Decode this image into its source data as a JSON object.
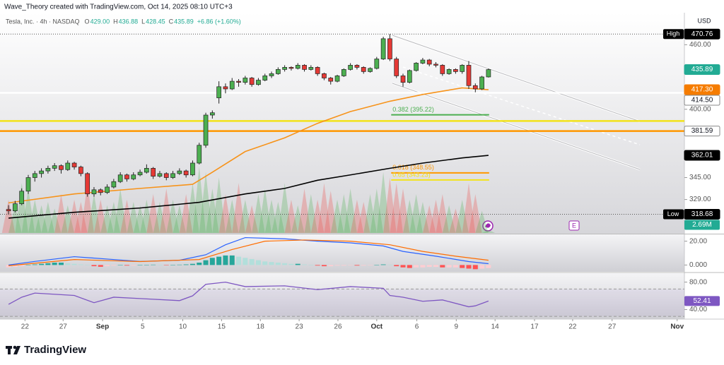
{
  "header": {
    "caption": "Wave_Theory created with TradingView.com, Oct 14, 2025 08:10 UTC+3"
  },
  "brand": "TradingView",
  "chart_data": {
    "type": "candlestick",
    "symbol": "Tesla, Inc. · 4h · NASDAQ",
    "ohlc_names": [
      "O",
      "H",
      "L",
      "C"
    ],
    "ohlc": [
      {
        "value": 429,
        "label": "429.00"
      },
      {
        "value": 436.88,
        "label": "436.88"
      },
      {
        "value": 428.45,
        "label": "428.45"
      },
      {
        "value": 435.89,
        "label": "435.89"
      }
    ],
    "change": "+6.86 (+1.60%)",
    "currency": "USD",
    "log_scale": true,
    "grid": false,
    "up_color": "#4caf50",
    "down_color": "#e53935",
    "candles": [
      [
        322,
        325,
        318.68,
        321
      ],
      [
        321,
        328,
        320,
        326
      ],
      [
        326,
        337,
        325,
        335
      ],
      [
        335,
        347,
        333,
        345
      ],
      [
        345,
        350,
        342,
        348
      ],
      [
        348,
        352,
        345,
        350
      ],
      [
        350,
        354,
        348,
        352
      ],
      [
        352,
        356,
        350,
        354
      ],
      [
        354,
        355,
        348,
        351
      ],
      [
        351,
        358,
        350,
        356
      ],
      [
        356,
        357,
        351,
        353
      ],
      [
        353,
        354,
        346,
        348
      ],
      [
        348,
        349,
        331,
        333
      ],
      [
        333,
        338,
        331,
        336
      ],
      [
        336,
        337,
        332,
        334
      ],
      [
        334,
        340,
        333,
        338
      ],
      [
        338,
        344,
        337,
        342
      ],
      [
        342,
        349,
        341,
        347
      ],
      [
        347,
        348,
        342,
        344
      ],
      [
        344,
        349,
        343,
        347
      ],
      [
        347,
        351,
        346,
        349
      ],
      [
        349,
        355,
        348,
        352
      ],
      [
        352,
        353,
        344,
        346
      ],
      [
        346,
        350,
        345,
        348
      ],
      [
        348,
        349,
        343,
        345
      ],
      [
        345,
        350,
        344,
        348
      ],
      [
        348,
        352,
        347,
        350
      ],
      [
        350,
        351,
        345,
        347
      ],
      [
        347,
        358,
        346,
        356
      ],
      [
        356,
        372,
        355,
        370
      ],
      [
        370,
        397,
        368,
        395
      ],
      [
        395,
        399,
        392,
        397
      ],
      [
        410,
        425,
        405,
        420
      ],
      [
        420,
        423,
        414,
        418
      ],
      [
        418,
        428,
        417,
        425
      ],
      [
        425,
        427,
        420,
        424
      ],
      [
        424,
        430,
        422,
        428
      ],
      [
        428,
        429,
        420,
        422
      ],
      [
        422,
        428,
        421,
        426
      ],
      [
        426,
        432,
        425,
        430
      ],
      [
        430,
        434,
        428,
        432
      ],
      [
        432,
        438,
        431,
        436
      ],
      [
        436,
        440,
        434,
        438
      ],
      [
        438,
        439,
        435,
        437
      ],
      [
        437,
        442,
        436,
        440
      ],
      [
        440,
        441,
        434,
        436
      ],
      [
        436,
        440,
        435,
        438
      ],
      [
        438,
        439,
        430,
        432
      ],
      [
        432,
        433,
        426,
        428
      ],
      [
        428,
        429,
        422,
        425
      ],
      [
        425,
        431,
        424,
        430
      ],
      [
        430,
        437,
        429,
        436
      ],
      [
        436,
        442,
        435,
        440
      ],
      [
        440,
        441,
        436,
        438
      ],
      [
        438,
        439,
        432,
        434
      ],
      [
        434,
        438,
        433,
        437
      ],
      [
        437,
        448,
        436,
        446
      ],
      [
        446,
        468,
        445,
        466
      ],
      [
        466,
        470.76,
        444,
        446
      ],
      [
        446,
        448,
        428,
        430
      ],
      [
        430,
        432,
        420,
        424
      ],
      [
        424,
        436,
        423,
        435
      ],
      [
        435,
        443,
        434,
        442
      ],
      [
        442,
        447,
        441,
        445
      ],
      [
        445,
        446,
        439,
        441
      ],
      [
        441,
        443,
        438,
        440
      ],
      [
        440,
        441,
        430,
        432
      ],
      [
        432,
        437,
        431,
        436
      ],
      [
        436,
        437,
        432,
        434
      ],
      [
        434,
        441,
        432,
        440
      ],
      [
        440,
        444,
        418,
        421
      ],
      [
        421,
        423,
        415,
        418
      ],
      [
        418,
        430,
        417,
        429
      ],
      [
        429,
        436.88,
        428.45,
        435.89
      ]
    ],
    "xlim": [
      -1.3,
      102.8
    ],
    "xticks": [
      {
        "value": 2.5,
        "label": "22"
      },
      {
        "value": 8.3,
        "label": "27"
      },
      {
        "value": 14.3,
        "label": "Sep"
      },
      {
        "value": 20.4,
        "label": "5"
      },
      {
        "value": 26.5,
        "label": "10"
      },
      {
        "value": 32.4,
        "label": "15"
      },
      {
        "value": 38.3,
        "label": "18"
      },
      {
        "value": 44.2,
        "label": "23"
      },
      {
        "value": 50.1,
        "label": "26"
      },
      {
        "value": 56,
        "label": "Oct"
      },
      {
        "value": 62.1,
        "label": "6"
      },
      {
        "value": 68.1,
        "label": "9"
      },
      {
        "value": 74,
        "label": "14"
      },
      {
        "value": 80,
        "label": "17"
      },
      {
        "value": 85.8,
        "label": "22"
      },
      {
        "value": 91.8,
        "label": "27"
      },
      {
        "value": 101.7,
        "label": "Nov"
      }
    ],
    "ylim": [
      306,
      491.5
    ],
    "yticks": [
      {
        "value": 460,
        "label": "460.00"
      },
      {
        "value": 400,
        "label": "400.00"
      },
      {
        "value": 345,
        "label": "345.00"
      },
      {
        "value": 329,
        "label": "329.00"
      }
    ],
    "moving_averages": [
      {
        "color": "#f7931a",
        "x": [
          0,
          10,
          20,
          28,
          31,
          36,
          42,
          47,
          52,
          58,
          63,
          69,
          73
        ],
        "values": [
          326.6,
          333,
          337,
          340,
          349,
          365,
          376,
          388,
          398,
          407,
          413,
          419,
          417.3
        ]
      },
      {
        "color": "#000000",
        "x": [
          0,
          10,
          20,
          29,
          36,
          42,
          47,
          52,
          58,
          63,
          69,
          73
        ],
        "values": [
          316,
          320,
          323,
          327,
          333,
          337,
          343,
          347,
          352,
          356,
          360,
          362.01
        ]
      }
    ],
    "levels": [
      {
        "value": 414.5,
        "color": "#ffffff"
      },
      {
        "value": 390,
        "color": "#f2e21a"
      },
      {
        "value": 381.59,
        "color": "#ff9800"
      }
    ],
    "fib": [
      {
        "label": "0.382 (395.22)",
        "value": 395.22,
        "color": "#4caf50"
      },
      {
        "label": "0.618 (348.55)",
        "value": 348.55,
        "color": "#ff9800"
      },
      {
        "label": "0.65 (343.23)",
        "value": 343.23,
        "color": "#f2e21a"
      }
    ],
    "markers": [
      {
        "name": "High",
        "value": 470.76,
        "label": "470.76",
        "color": "#000000"
      },
      {
        "value": 435.89,
        "label": "435.89",
        "color": "#22ab94"
      },
      {
        "value": 417.3,
        "label": "417.30",
        "color": "#f57c00"
      },
      {
        "value": 414.5,
        "label": "414.50",
        "color": "#ffffff"
      },
      {
        "value": 381.59,
        "label": "381.59",
        "color": "#ffffff"
      },
      {
        "value": 362.01,
        "label": "362.01",
        "color": "#000000"
      },
      {
        "name": "Low",
        "value": 318.68,
        "label": "318.68",
        "color": "#000000"
      }
    ],
    "volume": {
      "ylim": [
        0,
        70
      ],
      "last_label": "2.69M",
      "color": "#22ab94",
      "values": [
        30,
        25,
        45,
        40,
        30,
        25,
        28,
        22,
        35,
        25,
        30,
        28,
        45,
        35,
        30,
        25,
        28,
        40,
        30,
        28,
        25,
        30,
        35,
        28,
        40,
        30,
        25,
        35,
        45,
        60,
        55,
        40,
        50,
        35,
        30,
        45,
        30,
        25,
        35,
        40,
        30,
        28,
        45,
        30,
        25,
        40,
        35,
        30,
        45,
        38,
        30,
        35,
        40,
        30,
        28,
        35,
        40,
        55,
        50,
        45,
        40,
        30,
        35,
        28,
        25,
        30,
        35,
        25,
        22,
        30,
        45,
        35,
        20,
        2.69
      ]
    },
    "macd": {
      "ylim": [
        -5.7,
        25.7
      ],
      "yticks": [
        {
          "value": 20,
          "label": "20.00"
        },
        {
          "value": 0,
          "label": "0.000"
        }
      ],
      "histogram": [
        -2,
        -1.5,
        -1,
        0,
        0.5,
        1,
        1.5,
        2,
        2,
        1.5,
        1,
        0.5,
        0,
        -1,
        -1.5,
        -1,
        -0.5,
        0,
        -0.5,
        -0.5,
        0,
        0,
        0.3,
        0,
        -0.3,
        0,
        0.3,
        0.5,
        1,
        2,
        4,
        6,
        7,
        8,
        8,
        7,
        6,
        5,
        4,
        3,
        2.5,
        2,
        1.5,
        1,
        1,
        0.5,
        0,
        -0.5,
        -1,
        -1,
        -0.5,
        -0.5,
        -0.3,
        -0.5,
        -0.5,
        -0.3,
        0.2,
        0.5,
        0.3,
        -1,
        -2,
        -2.5,
        -2,
        -2,
        -1.5,
        -1.5,
        -2,
        -2,
        -2,
        -2.5,
        -3,
        -3.5,
        -3,
        -2.5
      ],
      "macd": {
        "color": "#2962ff",
        "x": [
          0,
          4,
          10,
          15,
          20,
          26,
          30,
          33,
          36,
          42,
          47,
          52,
          57,
          60,
          65,
          70,
          73
        ],
        "values": [
          0,
          3,
          7,
          5,
          3,
          4,
          8.6,
          17,
          23,
          22,
          20,
          18.6,
          16,
          11.4,
          7.4,
          2.9,
          1.1
        ]
      },
      "signal": {
        "color": "#ff6d00",
        "x": [
          0,
          10,
          20,
          29,
          34,
          39,
          45,
          52,
          58,
          63,
          68,
          73
        ],
        "values": [
          -0.6,
          4.6,
          2.9,
          4.6,
          13,
          20,
          21,
          20,
          17,
          11.4,
          7.4,
          4
        ]
      }
    },
    "rsi": {
      "ylim": [
        26,
        93
      ],
      "yticks": [
        {
          "value": 80,
          "label": "80.00"
        },
        {
          "value": 40,
          "label": "40.00"
        }
      ],
      "bands": [
        70,
        30
      ],
      "color": "#7e57c2",
      "last_label": "52.41",
      "x": [
        0,
        2,
        4,
        10,
        13,
        16,
        20,
        26,
        28,
        30,
        33,
        36,
        42,
        47,
        52,
        57,
        58,
        60,
        63,
        66,
        70,
        71,
        73
      ],
      "values": [
        47.6,
        58,
        64,
        60.5,
        50,
        58,
        56,
        53,
        60,
        76.8,
        80,
        73.5,
        74.6,
        69,
        73.5,
        71,
        60.5,
        58,
        52,
        54,
        44,
        45.4,
        52.41
      ]
    },
    "earnings": "E"
  }
}
